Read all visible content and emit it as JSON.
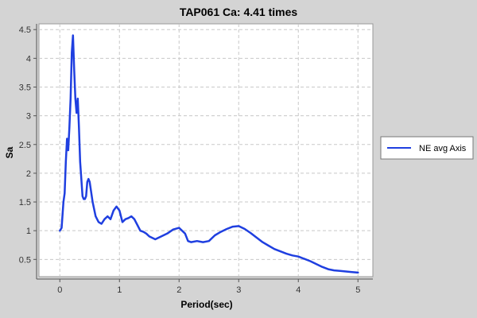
{
  "chart_data": {
    "type": "line",
    "title": "TAP061 Ca: 4.41 times",
    "xlabel": "Period(sec)",
    "ylabel": "Sa",
    "xlim": [
      -0.35,
      5.25
    ],
    "ylim": [
      0.2,
      4.6
    ],
    "xticks": [
      0,
      1,
      2,
      3,
      4,
      5
    ],
    "yticks": [
      0.5,
      1,
      1.5,
      2,
      2.5,
      3,
      3.5,
      4,
      4.5
    ],
    "grid": true,
    "legend": "right",
    "series": [
      {
        "name": "NE avg Axis",
        "color": "#1f3fe0",
        "x": [
          0.0,
          0.03,
          0.06,
          0.08,
          0.1,
          0.12,
          0.14,
          0.16,
          0.18,
          0.2,
          0.22,
          0.24,
          0.26,
          0.28,
          0.3,
          0.32,
          0.34,
          0.36,
          0.38,
          0.4,
          0.42,
          0.44,
          0.46,
          0.48,
          0.5,
          0.55,
          0.6,
          0.65,
          0.7,
          0.75,
          0.8,
          0.85,
          0.9,
          0.95,
          1.0,
          1.05,
          1.1,
          1.15,
          1.2,
          1.25,
          1.3,
          1.35,
          1.4,
          1.45,
          1.5,
          1.6,
          1.7,
          1.8,
          1.9,
          2.0,
          2.1,
          2.15,
          2.2,
          2.3,
          2.4,
          2.5,
          2.6,
          2.7,
          2.8,
          2.9,
          3.0,
          3.1,
          3.2,
          3.3,
          3.4,
          3.5,
          3.6,
          3.7,
          3.8,
          3.9,
          4.0,
          4.1,
          4.2,
          4.3,
          4.4,
          4.5,
          4.6,
          4.7,
          4.8,
          4.9,
          5.0
        ],
        "y": [
          1.0,
          1.05,
          1.5,
          1.65,
          2.2,
          2.6,
          2.4,
          2.8,
          3.3,
          4.1,
          4.4,
          3.8,
          3.3,
          3.05,
          3.3,
          2.8,
          2.2,
          1.9,
          1.6,
          1.55,
          1.55,
          1.6,
          1.85,
          1.9,
          1.85,
          1.5,
          1.25,
          1.15,
          1.12,
          1.2,
          1.25,
          1.2,
          1.35,
          1.42,
          1.35,
          1.15,
          1.2,
          1.22,
          1.25,
          1.2,
          1.1,
          1.0,
          0.98,
          0.95,
          0.9,
          0.85,
          0.9,
          0.95,
          1.02,
          1.05,
          0.95,
          0.82,
          0.8,
          0.82,
          0.8,
          0.82,
          0.92,
          0.98,
          1.03,
          1.07,
          1.08,
          1.03,
          0.96,
          0.88,
          0.8,
          0.74,
          0.68,
          0.64,
          0.6,
          0.57,
          0.55,
          0.51,
          0.47,
          0.42,
          0.37,
          0.33,
          0.31,
          0.3,
          0.29,
          0.28,
          0.27
        ]
      }
    ]
  }
}
